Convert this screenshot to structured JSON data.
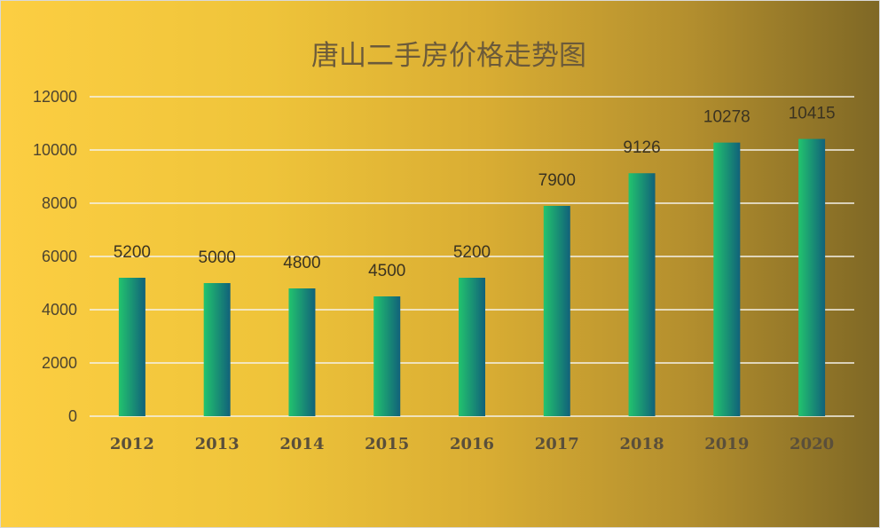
{
  "colors": {
    "bar_gradient_start": "#22c46e",
    "bar_gradient_end": "#11617a",
    "gridline": "#f4f1ea",
    "background_left": "#fcce42",
    "background_right": "#7f6825"
  },
  "chart_data": {
    "type": "bar",
    "title": "唐山二手房价格走势图",
    "xlabel": "",
    "ylabel": "",
    "categories": [
      "2012",
      "2013",
      "2014",
      "2015",
      "2016",
      "2017",
      "2018",
      "2019",
      "2020"
    ],
    "series": [
      {
        "values": [
          5200,
          5000,
          4800,
          4500,
          5200,
          7900,
          9126,
          10278,
          10415
        ]
      }
    ],
    "data_labels": [
      "5200",
      "5000",
      "4800",
      "4500",
      "5200",
      "7900",
      "9126",
      "10278",
      "10415"
    ],
    "ylim": [
      0,
      12000
    ],
    "yticks": [
      0,
      2000,
      4000,
      6000,
      8000,
      10000,
      12000
    ],
    "ytick_labels": [
      "0",
      "2000",
      "4000",
      "6000",
      "8000",
      "10000",
      "12000"
    ],
    "grid": true,
    "legend": "none"
  }
}
